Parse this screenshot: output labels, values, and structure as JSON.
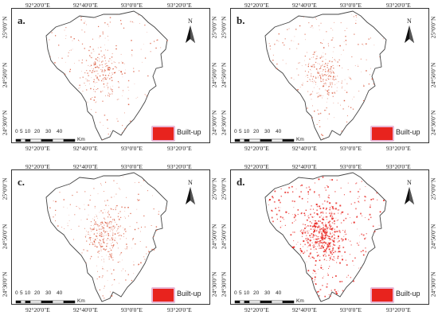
{
  "panels": [
    {
      "id": "a",
      "label": "a.",
      "density": 0.25,
      "coords_top": [
        "92°20'0\"E",
        "92°40'0\"E",
        "93°0'0\"E",
        "93°20'0\"E"
      ],
      "coords_bottom": [
        "92°20'0\"E",
        "92°40'0\"E",
        "93°0'0\"E",
        "93°20'0\"E"
      ],
      "coords_left": [
        "25°0'0\"N",
        "24°50'0\"N",
        "24°30'0\"N"
      ],
      "coords_right": [
        "25°0'0\"N",
        "24°50'0\"N",
        "24°30'0\"N"
      ],
      "legend_label": "Built-up",
      "scale_numbers": [
        "0",
        "5",
        "10",
        "20",
        "30",
        "40"
      ],
      "scale_unit": "Km"
    },
    {
      "id": "b",
      "label": "b.",
      "density": 0.32,
      "coords_top": [
        "92°20'0\"E",
        "92°40'0\"E",
        "93°0'0\"E",
        "93°20'0\"E"
      ],
      "coords_bottom": [
        "92°20'0\"E",
        "92°40'0\"E",
        "93°0'0\"E",
        "93°20'0\"E"
      ],
      "coords_left": [
        "25°0'0\"N",
        "24°50'0\"N",
        "24°30'0\"N"
      ],
      "coords_right": [
        "25°0'0\"N",
        "24°50'0\"N",
        "24°30'0\"N"
      ],
      "legend_label": "Built-up",
      "scale_numbers": [
        "0",
        "5",
        "10",
        "20",
        "30",
        "40"
      ],
      "scale_unit": "Km"
    },
    {
      "id": "c",
      "label": "c.",
      "density": 0.45,
      "coords_top": [
        "92°20'0\"E",
        "92°40'0\"E",
        "93°0'0\"E",
        "93°20'0\"E"
      ],
      "coords_bottom": [
        "92°20'0\"E",
        "92°40'0\"E",
        "93°0'0\"E",
        "93°20'0\"E"
      ],
      "coords_left": [
        "25°0'0\"N",
        "24°50'0\"N",
        "24°30'0\"N"
      ],
      "coords_right": [
        "25°0'0\"N",
        "24°50'0\"N",
        "24°30'0\"N"
      ],
      "legend_label": "Built-up",
      "scale_numbers": [
        "0",
        "5",
        "10",
        "20",
        "30",
        "40"
      ],
      "scale_unit": "Km"
    },
    {
      "id": "d",
      "label": "d.",
      "density": 0.9,
      "coords_top": [
        "92°20'0\"E",
        "92°40'0\"E",
        "93°0'0\"E",
        "93°20'0\"E"
      ],
      "coords_bottom": [
        "92°20'0\"E",
        "92°40'0\"E",
        "93°0'0\"E",
        "93°20'0\"E"
      ],
      "coords_left": [
        "25°0'0\"N",
        "24°50'0\"N",
        "24°30'0\"N"
      ],
      "coords_right": [
        "25°0'0\"N",
        "24°50'0\"N",
        "24°30'0\"N"
      ],
      "legend_label": "Built-up",
      "scale_numbers": [
        "0",
        "5",
        "10",
        "20",
        "30",
        "40"
      ],
      "scale_unit": "Km"
    }
  ],
  "colors": {
    "builtup": "#e8231e",
    "builtup_light": "#d9573a",
    "boundary": "#444444",
    "legend_border": "#e9b8d6"
  },
  "icons": {
    "north_arrow": "north-arrow-icon"
  },
  "north_label": "N"
}
